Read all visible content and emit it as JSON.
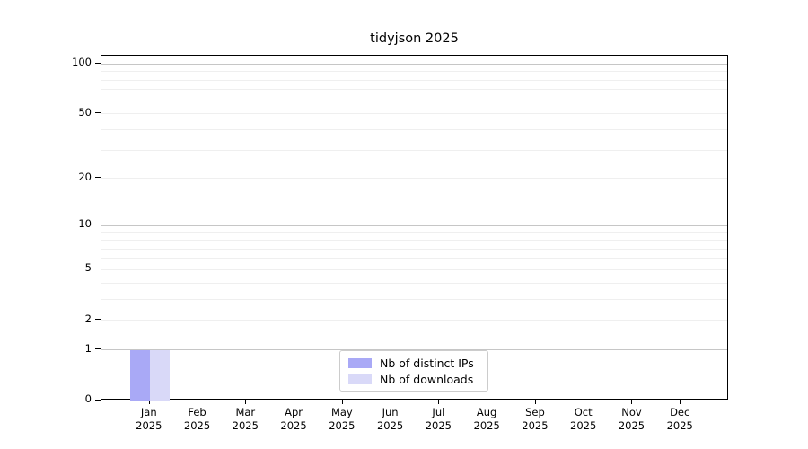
{
  "chart_data": {
    "type": "bar",
    "title": "tidyjson 2025",
    "categories": [
      {
        "month": "Jan",
        "year": "2025"
      },
      {
        "month": "Feb",
        "year": "2025"
      },
      {
        "month": "Mar",
        "year": "2025"
      },
      {
        "month": "Apr",
        "year": "2025"
      },
      {
        "month": "May",
        "year": "2025"
      },
      {
        "month": "Jun",
        "year": "2025"
      },
      {
        "month": "Jul",
        "year": "2025"
      },
      {
        "month": "Aug",
        "year": "2025"
      },
      {
        "month": "Sep",
        "year": "2025"
      },
      {
        "month": "Oct",
        "year": "2025"
      },
      {
        "month": "Nov",
        "year": "2025"
      },
      {
        "month": "Dec",
        "year": "2025"
      }
    ],
    "series": [
      {
        "name": "Nb of distinct IPs",
        "color": "#a9a9f6",
        "values": [
          1,
          0,
          0,
          0,
          0,
          0,
          0,
          0,
          0,
          0,
          0,
          0
        ]
      },
      {
        "name": "Nb of downloads",
        "color": "#d9d9f8",
        "values": [
          1,
          0,
          0,
          0,
          0,
          0,
          0,
          0,
          0,
          0,
          0,
          0
        ]
      }
    ],
    "xlabel": "",
    "ylabel": "",
    "yscale": "log1p",
    "ylim": [
      0,
      112
    ],
    "yticks": [
      0,
      1,
      2,
      5,
      10,
      20,
      50,
      100
    ],
    "gridlines": {
      "strong": [
        1,
        10,
        100
      ],
      "light": [
        2,
        3,
        4,
        5,
        6,
        7,
        8,
        9,
        20,
        30,
        40,
        50,
        60,
        70,
        80,
        90
      ]
    },
    "grid": true,
    "legend_position": "lower center"
  }
}
